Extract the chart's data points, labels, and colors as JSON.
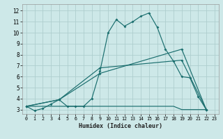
{
  "xlabel": "Humidex (Indice chaleur)",
  "bg_color": "#cde8e8",
  "grid_color": "#aecece",
  "line_color": "#1a6e6e",
  "xlim": [
    -0.5,
    23.5
  ],
  "ylim": [
    2.6,
    12.6
  ],
  "xticks": [
    0,
    1,
    2,
    3,
    4,
    5,
    6,
    7,
    8,
    9,
    10,
    11,
    12,
    13,
    14,
    15,
    16,
    17,
    18,
    19,
    20,
    21,
    22,
    23
  ],
  "yticks": [
    3,
    4,
    5,
    6,
    7,
    8,
    9,
    10,
    11,
    12
  ],
  "series": [
    {
      "x": [
        0,
        1,
        2,
        3,
        4,
        5,
        6,
        7,
        8,
        9,
        10,
        11,
        12,
        13,
        14,
        15,
        16,
        17,
        18,
        19,
        20,
        21,
        22
      ],
      "y": [
        3.3,
        2.9,
        3.1,
        3.5,
        3.9,
        3.3,
        3.3,
        3.3,
        4.0,
        6.5,
        10.0,
        11.2,
        10.6,
        11.0,
        11.5,
        11.8,
        10.5,
        8.5,
        7.4,
        6.0,
        5.9,
        4.2,
        3.0
      ],
      "marker": true
    },
    {
      "x": [
        0,
        4,
        9,
        19,
        22
      ],
      "y": [
        3.3,
        3.9,
        6.8,
        7.5,
        3.0
      ],
      "marker": true
    },
    {
      "x": [
        0,
        4,
        9,
        19,
        22
      ],
      "y": [
        3.3,
        3.9,
        6.3,
        8.5,
        3.0
      ],
      "marker": true
    },
    {
      "x": [
        0,
        4,
        5,
        6,
        7,
        8,
        9,
        10,
        11,
        12,
        13,
        14,
        15,
        16,
        17,
        18,
        19,
        20,
        21,
        22
      ],
      "y": [
        3.3,
        3.3,
        3.3,
        3.3,
        3.3,
        3.3,
        3.3,
        3.3,
        3.3,
        3.3,
        3.3,
        3.3,
        3.3,
        3.3,
        3.3,
        3.3,
        3.0,
        3.0,
        3.0,
        3.0
      ],
      "marker": false
    }
  ]
}
